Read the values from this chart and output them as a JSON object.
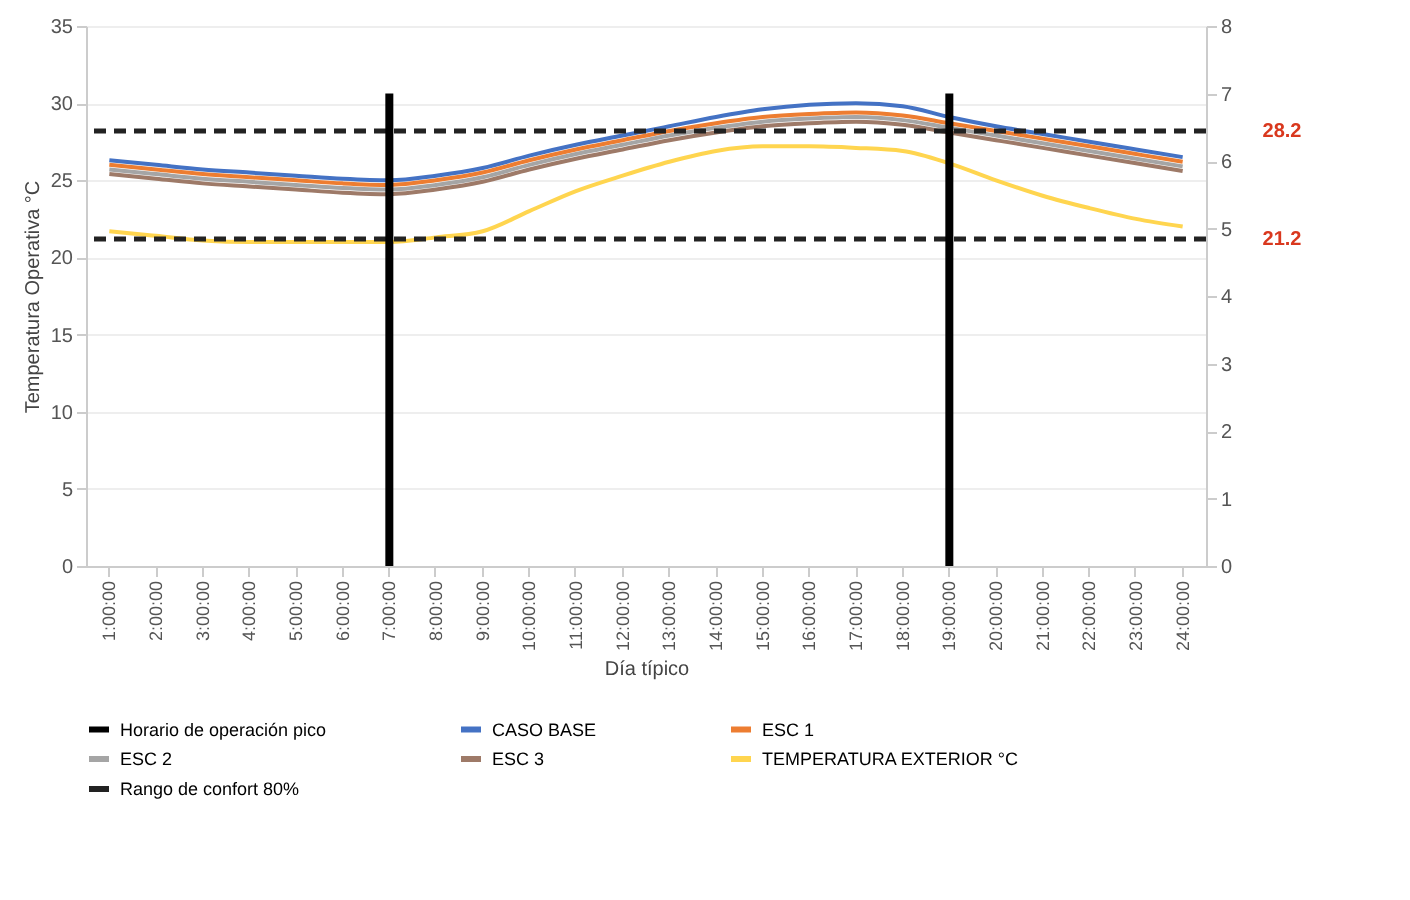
{
  "chart_data": {
    "type": "line",
    "xlabel": "Día típico",
    "ylabel": "Temperatura Operativa °C",
    "categories": [
      "1:00:00",
      "2:00:00",
      "3:00:00",
      "4:00:00",
      "5:00:00",
      "6:00:00",
      "7:00:00",
      "8:00:00",
      "9:00:00",
      "10:00:00",
      "11:00:00",
      "12:00:00",
      "13:00:00",
      "14:00:00",
      "15:00:00",
      "16:00:00",
      "17:00:00",
      "18:00:00",
      "19:00:00",
      "20:00:00",
      "21:00:00",
      "22:00:00",
      "23:00:00",
      "24:00:00"
    ],
    "ylim": [
      0,
      35
    ],
    "yticks": [
      0,
      5,
      10,
      15,
      20,
      25,
      30,
      35
    ],
    "y2lim": [
      0,
      8
    ],
    "y2ticks": [
      0,
      1,
      2,
      3,
      4,
      5,
      6,
      7,
      8
    ],
    "grid": "y",
    "legend": "bottom",
    "line_style": "solid",
    "series": [
      {
        "name": "Horario de operación pico",
        "type": "bar",
        "axis": "y2",
        "color": "#000000",
        "values": [
          null,
          null,
          null,
          null,
          null,
          null,
          7,
          null,
          null,
          null,
          null,
          null,
          null,
          null,
          null,
          null,
          null,
          null,
          7,
          null,
          null,
          null,
          null,
          null
        ]
      },
      {
        "name": "CASO BASE",
        "color": "#4472c4",
        "values": [
          26.3,
          26.0,
          25.7,
          25.5,
          25.3,
          25.1,
          25.0,
          25.3,
          25.8,
          26.6,
          27.3,
          27.9,
          28.5,
          29.1,
          29.6,
          29.9,
          30.0,
          29.8,
          29.1,
          28.5,
          28.0,
          27.5,
          27.0,
          26.5
        ]
      },
      {
        "name": "ESC 1",
        "color": "#ed7d31",
        "values": [
          26.0,
          25.7,
          25.4,
          25.2,
          25.0,
          24.8,
          24.7,
          25.0,
          25.5,
          26.3,
          27.0,
          27.6,
          28.2,
          28.7,
          29.1,
          29.3,
          29.4,
          29.2,
          28.7,
          28.2,
          27.7,
          27.2,
          26.7,
          26.2
        ]
      },
      {
        "name": "ESC 2",
        "color": "#a5a5a5",
        "values": [
          25.7,
          25.4,
          25.1,
          24.9,
          24.7,
          24.5,
          24.4,
          24.7,
          25.2,
          26.0,
          26.7,
          27.3,
          27.9,
          28.4,
          28.8,
          29.0,
          29.1,
          28.9,
          28.4,
          27.9,
          27.4,
          26.9,
          26.4,
          25.9
        ]
      },
      {
        "name": "ESC 3",
        "color": "#9e7a68",
        "values": [
          25.4,
          25.1,
          24.8,
          24.6,
          24.4,
          24.2,
          24.1,
          24.4,
          24.9,
          25.7,
          26.4,
          27.0,
          27.6,
          28.1,
          28.5,
          28.7,
          28.8,
          28.6,
          28.1,
          27.6,
          27.1,
          26.6,
          26.1,
          25.6
        ]
      },
      {
        "name": "TEMPERATURA EXTERIOR °C",
        "color": "#ffd54f",
        "values": [
          21.7,
          21.4,
          21.1,
          21.0,
          21.0,
          21.0,
          21.0,
          21.3,
          21.7,
          23.0,
          24.3,
          25.3,
          26.2,
          26.9,
          27.2,
          27.2,
          27.1,
          26.9,
          26.1,
          25.0,
          24.0,
          23.2,
          22.5,
          22.0
        ]
      }
    ],
    "ref_lines": [
      {
        "axis": "y",
        "value": 28.2,
        "label": "Rango de confort 80%",
        "color": "#222222",
        "line_style": "dashed"
      },
      {
        "axis": "y",
        "value": 21.2,
        "label": null,
        "color": "#222222",
        "line_style": "dashed"
      }
    ],
    "annotations": [
      "28.2",
      "21.2"
    ]
  }
}
